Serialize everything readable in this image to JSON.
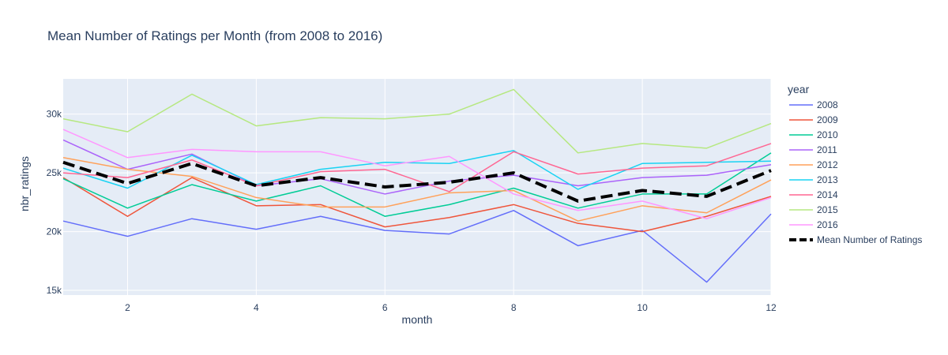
{
  "chart_data": {
    "type": "line",
    "title": "Mean Number of Ratings per Month (from 2008 to 2016)",
    "xlabel": "month",
    "ylabel": "nbr_ratings",
    "xlim": [
      1,
      12
    ],
    "ylim": [
      14600,
      33000
    ],
    "x_ticks": [
      2,
      4,
      6,
      8,
      10,
      12
    ],
    "y_ticks": [
      15000,
      20000,
      25000,
      30000
    ],
    "y_tick_labels": [
      "15k",
      "20k",
      "25k",
      "30k"
    ],
    "grid": true,
    "plot_background": "#e5ecf6",
    "legend_title": "year",
    "legend_position": "right",
    "x": [
      1,
      2,
      3,
      4,
      5,
      6,
      7,
      8,
      9,
      10,
      11,
      12
    ],
    "series": [
      {
        "name": "2008",
        "color": "#636efa",
        "dash": "solid",
        "width": 1.5,
        "values": [
          20900,
          19600,
          21100,
          20200,
          21300,
          20100,
          19800,
          21800,
          18800,
          20100,
          15700,
          21500
        ]
      },
      {
        "name": "2009",
        "color": "#EF553B",
        "dash": "solid",
        "width": 1.5,
        "values": [
          24600,
          21300,
          24600,
          22200,
          22300,
          20400,
          21200,
          22300,
          20700,
          20000,
          21300,
          23000
        ]
      },
      {
        "name": "2010",
        "color": "#00cc96",
        "dash": "solid",
        "width": 1.5,
        "values": [
          24500,
          22000,
          24000,
          22600,
          23900,
          21300,
          22300,
          23700,
          22000,
          23200,
          23200,
          26700
        ]
      },
      {
        "name": "2011",
        "color": "#ab63fa",
        "dash": "solid",
        "width": 1.5,
        "values": [
          27800,
          25300,
          26600,
          23900,
          24500,
          23200,
          24300,
          24800,
          23900,
          24600,
          24800,
          25700
        ]
      },
      {
        "name": "2012",
        "color": "#FFA15A",
        "dash": "solid",
        "width": 1.5,
        "values": [
          26300,
          25300,
          24700,
          22900,
          22100,
          22100,
          23300,
          23500,
          20900,
          22200,
          21600,
          24400
        ]
      },
      {
        "name": "2013",
        "color": "#19d3f3",
        "dash": "solid",
        "width": 1.5,
        "values": [
          25400,
          23700,
          26500,
          24000,
          25300,
          25900,
          25800,
          26900,
          23600,
          25800,
          25900,
          26000
        ]
      },
      {
        "name": "2014",
        "color": "#FF6692",
        "dash": "solid",
        "width": 1.5,
        "values": [
          25000,
          24600,
          26100,
          23900,
          25100,
          25300,
          23400,
          26800,
          24900,
          25400,
          25600,
          27500
        ]
      },
      {
        "name": "2015",
        "color": "#B6E880",
        "dash": "solid",
        "width": 1.5,
        "values": [
          29600,
          28500,
          31700,
          29000,
          29700,
          29600,
          30000,
          32100,
          26700,
          27500,
          27100,
          29200
        ]
      },
      {
        "name": "2016",
        "color": "#FF97FF",
        "dash": "solid",
        "width": 1.5,
        "values": [
          28700,
          26300,
          27000,
          26800,
          26800,
          25600,
          26400,
          23200,
          21800,
          22600,
          21100,
          22900
        ]
      },
      {
        "name": "Mean Number of Ratings",
        "color": "#000000",
        "dash": "dash",
        "width": 4,
        "values": [
          25900,
          24100,
          25800,
          23900,
          24600,
          23800,
          24200,
          25000,
          22600,
          23500,
          23000,
          25200
        ]
      }
    ]
  }
}
